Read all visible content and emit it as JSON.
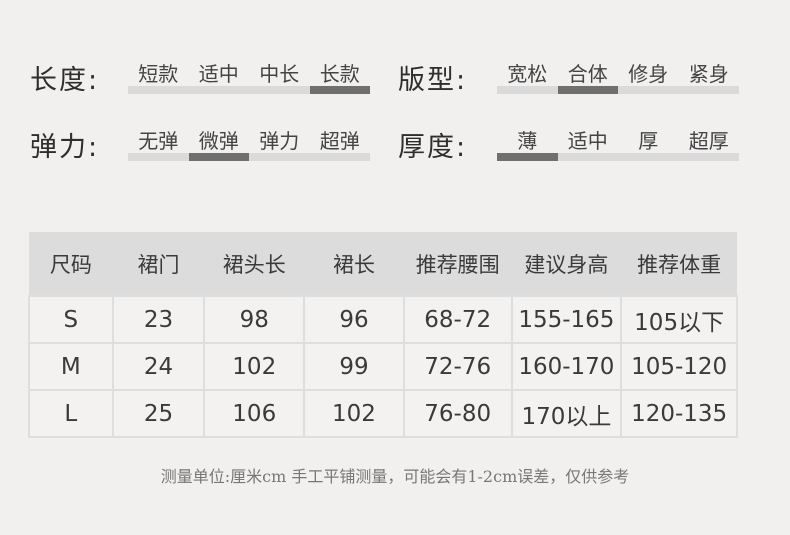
{
  "attributes": [
    {
      "label": "长度:",
      "options": [
        "短款",
        "适中",
        "中长",
        "长款"
      ],
      "selected_index": 3
    },
    {
      "label": "版型:",
      "options": [
        "宽松",
        "合体",
        "修身",
        "紧身"
      ],
      "selected_index": 1
    },
    {
      "label": "弹力:",
      "options": [
        "无弹",
        "微弹",
        "弹力",
        "超弹"
      ],
      "selected_index": 1
    },
    {
      "label": "厚度:",
      "options": [
        "薄",
        "适中",
        "厚",
        "超厚"
      ],
      "selected_index": 0
    }
  ],
  "table": {
    "headers": [
      "尺码",
      "裙门",
      "裙头长",
      "裙长",
      "推荐腰围",
      "建议身高",
      "推荐体重"
    ],
    "rows": [
      [
        "S",
        "23",
        "98",
        "96",
        "68-72",
        "155-165",
        "105以下"
      ],
      [
        "M",
        "24",
        "102",
        "99",
        "72-76",
        "160-170",
        "105-120"
      ],
      [
        "L",
        "25",
        "106",
        "102",
        "76-80",
        "170以上",
        "120-135"
      ]
    ]
  },
  "note": "测量单位:厘米cm   手工平铺测量，可能会有1-2cm误差，仅供参考",
  "colors": {
    "bar_track": "#dadada",
    "bar_fill": "#6f6f6f",
    "header_bg": "#dcdcdc"
  }
}
